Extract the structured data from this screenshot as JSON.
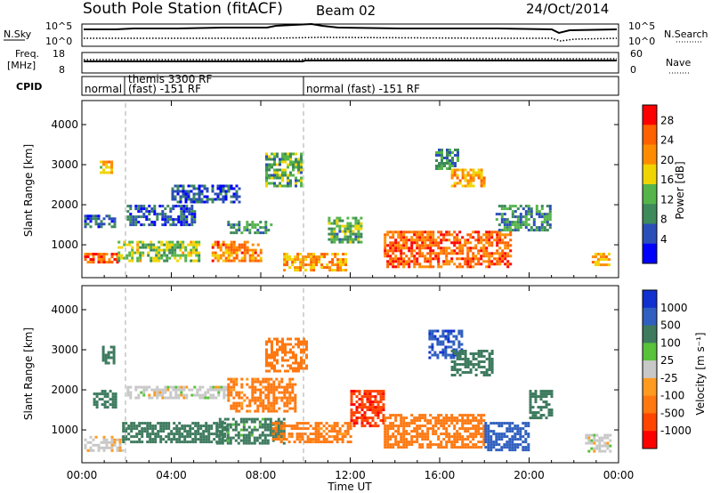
{
  "header": {
    "title": "South Pole Station (fitACF)",
    "beam": "Beam 02",
    "date": "24/Oct/2014"
  },
  "top_panels": {
    "nsky": {
      "label": "N.Sky",
      "ticks": [
        "10^5",
        "10^0"
      ]
    },
    "nsearch": {
      "label": "N.Search",
      "ticks": [
        "10^5",
        "10^0"
      ]
    },
    "freq": {
      "label_line1": "Freq.",
      "label_line2": "[MHz]",
      "ticks": [
        "18",
        "8"
      ]
    },
    "nave": {
      "label": "Nave",
      "ticks": [
        "60",
        "0"
      ]
    },
    "cpid": {
      "label": "CPID",
      "segments": [
        {
          "line1": "normal",
          "line2": ""
        },
        {
          "line1": "themis 3300 RF",
          "line2": "(fast) -151 RF"
        },
        {
          "line1": "normal (fast) -151 RF",
          "line2": ""
        }
      ]
    }
  },
  "colors": {
    "power": [
      "#0000ff",
      "#2b4fb8",
      "#3d8a5a",
      "#55b54a",
      "#f0d400",
      "#ff8c00",
      "#ff6000",
      "#ff0000"
    ],
    "velocity": [
      "#1030d0",
      "#2f5fbf",
      "#3d7a5e",
      "#57c23a",
      "#c8c8c8",
      "#ff9a20",
      "#ff7810",
      "#ff4500",
      "#ff0000"
    ]
  },
  "chart_data": [
    {
      "type": "heatmap",
      "title": "",
      "quantity": "Power",
      "xlabel": "",
      "ylabel": "Slant Range [km]",
      "xlim": [
        0,
        24
      ],
      "ylim": [
        180,
        4600
      ],
      "x_ticks": [
        "00:00",
        "04:00",
        "08:00",
        "12:00",
        "16:00",
        "20:00",
        "00:00"
      ],
      "y_ticks": [
        1000,
        2000,
        3000,
        4000
      ],
      "colorbar": {
        "label": "Power [dB]",
        "ticks": [
          "28",
          "24",
          "20",
          "16",
          "12",
          "8",
          "4"
        ],
        "range": [
          0,
          30
        ]
      },
      "regions": [
        {
          "t": [
            0.1,
            1.6
          ],
          "r": [
            550,
            800
          ],
          "v": 24
        },
        {
          "t": [
            0.1,
            1.5
          ],
          "r": [
            1450,
            1750
          ],
          "v": 6
        },
        {
          "t": [
            0.8,
            1.3
          ],
          "r": [
            2800,
            3100
          ],
          "v": 18
        },
        {
          "t": [
            1.6,
            5.2
          ],
          "r": [
            600,
            1100
          ],
          "v": 14
        },
        {
          "t": [
            2.0,
            5.0
          ],
          "r": [
            1500,
            2000
          ],
          "v": 6
        },
        {
          "t": [
            4.0,
            7.0
          ],
          "r": [
            2100,
            2500
          ],
          "v": 6
        },
        {
          "t": [
            5.8,
            8.0
          ],
          "r": [
            600,
            1100
          ],
          "v": 22
        },
        {
          "t": [
            6.5,
            8.5
          ],
          "r": [
            1300,
            1600
          ],
          "v": 10
        },
        {
          "t": [
            8.2,
            9.8
          ],
          "r": [
            2500,
            3300
          ],
          "v": 12
        },
        {
          "t": [
            9.0,
            11.8
          ],
          "r": [
            400,
            800
          ],
          "v": 20
        },
        {
          "t": [
            11.0,
            12.5
          ],
          "r": [
            1100,
            1700
          ],
          "v": 12
        },
        {
          "t": [
            13.5,
            19.2
          ],
          "r": [
            450,
            1350
          ],
          "v": 24
        },
        {
          "t": [
            15.8,
            16.8
          ],
          "r": [
            2900,
            3400
          ],
          "v": 10
        },
        {
          "t": [
            16.5,
            18.0
          ],
          "r": [
            2500,
            2900
          ],
          "v": 20
        },
        {
          "t": [
            18.5,
            21.0
          ],
          "r": [
            1400,
            2000
          ],
          "v": 10
        },
        {
          "t": [
            22.8,
            23.6
          ],
          "r": [
            500,
            800
          ],
          "v": 20
        }
      ]
    },
    {
      "type": "heatmap",
      "title": "",
      "quantity": "Velocity",
      "xlabel": "Time UT",
      "ylabel": "Slant Range [km]",
      "xlim": [
        0,
        24
      ],
      "ylim": [
        180,
        4600
      ],
      "x_ticks": [
        "00:00",
        "04:00",
        "08:00",
        "12:00",
        "16:00",
        "20:00",
        "00:00"
      ],
      "y_ticks": [
        1000,
        2000,
        3000,
        4000
      ],
      "colorbar": {
        "label": "Velocity [m s⁻¹]",
        "ticks": [
          "1000",
          "500",
          "100",
          "25",
          "-25",
          "-100",
          "-500",
          "-1000"
        ]
      },
      "regions": [
        {
          "t": [
            0.1,
            1.8
          ],
          "r": [
            500,
            850
          ],
          "v": -10
        },
        {
          "t": [
            0.5,
            1.5
          ],
          "r": [
            1600,
            2000
          ],
          "v": 150
        },
        {
          "t": [
            0.9,
            1.4
          ],
          "r": [
            2700,
            3100
          ],
          "v": 150
        },
        {
          "t": [
            1.8,
            6.5
          ],
          "r": [
            700,
            1200
          ],
          "v": 150
        },
        {
          "t": [
            2.0,
            6.5
          ],
          "r": [
            1800,
            2100
          ],
          "v": 0
        },
        {
          "t": [
            6.0,
            9.0
          ],
          "r": [
            700,
            1300
          ],
          "v": 100
        },
        {
          "t": [
            6.5,
            9.5
          ],
          "r": [
            1500,
            2300
          ],
          "v": -200
        },
        {
          "t": [
            8.2,
            10.0
          ],
          "r": [
            2500,
            3300
          ],
          "v": -250
        },
        {
          "t": [
            8.5,
            12.0
          ],
          "r": [
            700,
            1200
          ],
          "v": -200
        },
        {
          "t": [
            12.0,
            13.5
          ],
          "r": [
            1100,
            2000
          ],
          "v": -700
        },
        {
          "t": [
            13.5,
            18.0
          ],
          "r": [
            600,
            1400
          ],
          "v": -250
        },
        {
          "t": [
            15.5,
            17.0
          ],
          "r": [
            2800,
            3500
          ],
          "v": 700
        },
        {
          "t": [
            16.5,
            18.3
          ],
          "r": [
            2400,
            3000
          ],
          "v": 150
        },
        {
          "t": [
            18.0,
            20.0
          ],
          "r": [
            500,
            1200
          ],
          "v": 600
        },
        {
          "t": [
            20.0,
            21.0
          ],
          "r": [
            1300,
            2000
          ],
          "v": 150
        },
        {
          "t": [
            22.5,
            23.6
          ],
          "r": [
            500,
            900
          ],
          "v": 0
        }
      ]
    }
  ]
}
